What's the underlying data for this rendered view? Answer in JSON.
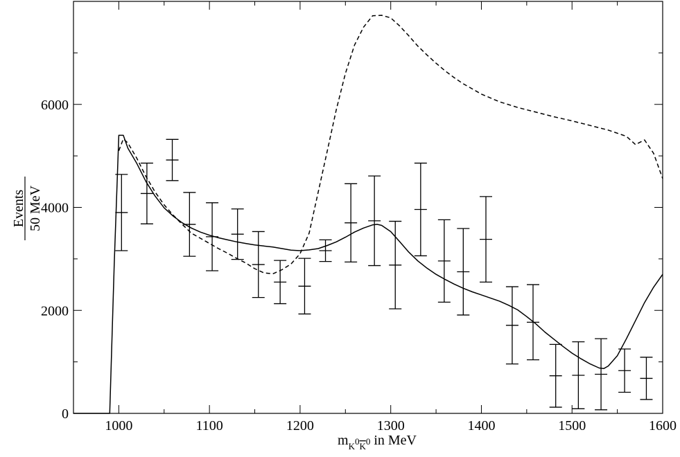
{
  "chart_data": {
    "type": "line",
    "title": "",
    "xlabel": {
      "prefix": "m",
      "subscript_main": "K",
      "subscript_sup1": "0",
      "subscript_bar": "K",
      "subscript_sup2": "0",
      "suffix": " in MeV"
    },
    "ylabel": {
      "numerator": "Events",
      "denominator": "50 MeV"
    },
    "xlim": [
      950,
      1600
    ],
    "ylim": [
      0,
      8000
    ],
    "x_ticks": [
      1000,
      1100,
      1200,
      1300,
      1400,
      1500,
      1600
    ],
    "y_ticks": [
      0,
      2000,
      4000,
      6000
    ],
    "grid": false,
    "series": [
      {
        "style": "solid",
        "x": [
          950,
          990,
          995,
          1000,
          1005,
          1010,
          1020,
          1030,
          1040,
          1050,
          1060,
          1070,
          1080,
          1090,
          1100,
          1110,
          1120,
          1130,
          1140,
          1150,
          1160,
          1170,
          1180,
          1190,
          1200,
          1210,
          1220,
          1230,
          1240,
          1250,
          1260,
          1270,
          1280,
          1285,
          1290,
          1300,
          1310,
          1320,
          1330,
          1340,
          1350,
          1360,
          1370,
          1380,
          1390,
          1400,
          1410,
          1420,
          1430,
          1440,
          1450,
          1460,
          1470,
          1480,
          1490,
          1500,
          1510,
          1520,
          1530,
          1535,
          1540,
          1550,
          1560,
          1570,
          1580,
          1590,
          1600
        ],
        "y": [
          0,
          0,
          2900,
          5400,
          5400,
          5150,
          4850,
          4500,
          4220,
          3990,
          3830,
          3700,
          3600,
          3520,
          3460,
          3410,
          3370,
          3330,
          3300,
          3270,
          3250,
          3230,
          3200,
          3170,
          3160,
          3175,
          3200,
          3260,
          3330,
          3420,
          3520,
          3600,
          3660,
          3670,
          3650,
          3530,
          3330,
          3130,
          2960,
          2820,
          2700,
          2600,
          2510,
          2430,
          2360,
          2300,
          2240,
          2180,
          2100,
          2010,
          1880,
          1740,
          1580,
          1440,
          1300,
          1170,
          1060,
          960,
          880,
          870,
          920,
          1120,
          1450,
          1800,
          2150,
          2450,
          2700
        ]
      },
      {
        "style": "dashed",
        "x": [
          1000,
          1005,
          1010,
          1020,
          1030,
          1040,
          1050,
          1060,
          1070,
          1080,
          1090,
          1100,
          1110,
          1120,
          1130,
          1140,
          1150,
          1160,
          1170,
          1180,
          1190,
          1200,
          1210,
          1220,
          1230,
          1240,
          1250,
          1260,
          1270,
          1280,
          1290,
          1300,
          1310,
          1320,
          1330,
          1340,
          1350,
          1360,
          1370,
          1380,
          1390,
          1400,
          1420,
          1440,
          1460,
          1480,
          1500,
          1520,
          1540,
          1560,
          1570,
          1580,
          1590,
          1600
        ],
        "y": [
          5100,
          5330,
          5250,
          4950,
          4600,
          4300,
          4050,
          3850,
          3670,
          3500,
          3400,
          3300,
          3200,
          3110,
          3010,
          2920,
          2810,
          2730,
          2710,
          2790,
          2900,
          3100,
          3500,
          4300,
          5100,
          5900,
          6600,
          7150,
          7500,
          7720,
          7730,
          7680,
          7520,
          7330,
          7130,
          6960,
          6800,
          6650,
          6520,
          6400,
          6300,
          6200,
          6050,
          5940,
          5850,
          5760,
          5680,
          5590,
          5500,
          5380,
          5220,
          5310,
          5050,
          4560
        ]
      },
      {
        "style": "errorbars",
        "x": [
          1003,
          1031,
          1059,
          1078,
          1103,
          1131,
          1154,
          1178,
          1205,
          1228,
          1256,
          1282,
          1305,
          1333,
          1359,
          1380,
          1405,
          1434,
          1457,
          1482,
          1507,
          1532,
          1558,
          1582
        ],
        "y": [
          3900,
          4270,
          4920,
          3670,
          3430,
          3480,
          2890,
          2550,
          2470,
          3160,
          3700,
          3740,
          2880,
          3960,
          2960,
          2750,
          3380,
          1710,
          1770,
          730,
          740,
          760,
          830,
          680
        ],
        "yerr": [
          740,
          590,
          400,
          620,
          660,
          490,
          640,
          420,
          540,
          210,
          760,
          870,
          850,
          900,
          800,
          840,
          830,
          750,
          730,
          610,
          650,
          690,
          420,
          410
        ]
      }
    ]
  }
}
